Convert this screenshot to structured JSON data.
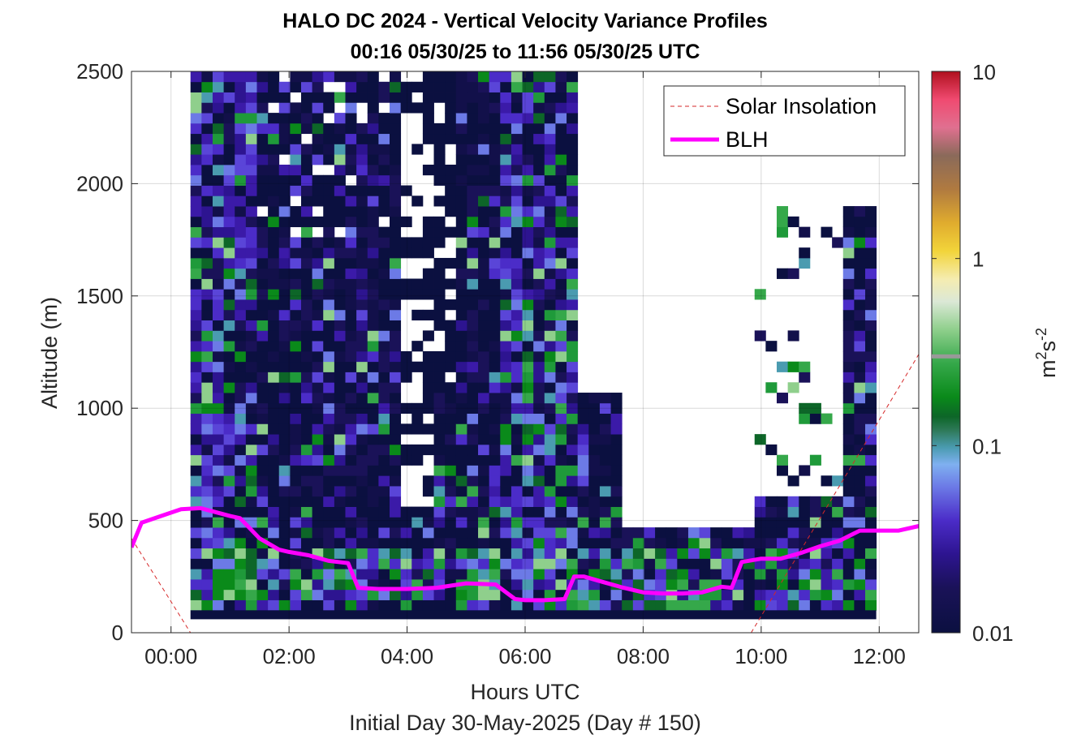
{
  "chart_data": {
    "type": "heatmap",
    "title": "HALO DC 2024 - Vertical Velocity Variance Profiles",
    "subtitle": "00:16 05/30/25 to 11:56 05/30/25  UTC",
    "xlabel": "Hours UTC",
    "xlabel2": "Initial Day 30-May-2025 (Day # 150)",
    "ylabel": "Altitude (m)",
    "x_ticks": [
      "00:00",
      "02:00",
      "04:00",
      "06:00",
      "08:00",
      "10:00",
      "12:00"
    ],
    "x_tick_hours": [
      0,
      2,
      4,
      6,
      8,
      10,
      12
    ],
    "xlim_hours": [
      -0.67,
      12.67
    ],
    "y_ticks": [
      "0",
      "500",
      "1000",
      "1500",
      "2000",
      "2500"
    ],
    "y_tick_values": [
      0,
      500,
      1000,
      1500,
      2000,
      2500
    ],
    "ylim": [
      0,
      2500
    ],
    "grid": true,
    "colorbar": {
      "scale": "log",
      "range": [
        0.01,
        10
      ],
      "tick_labels": [
        "0.01",
        "0.1",
        "1",
        "10"
      ],
      "tick_values": [
        0.01,
        0.1,
        1,
        10
      ],
      "label": "m2s-2",
      "marker_value": 0.3
    },
    "legend": {
      "position": "top-right",
      "entries": [
        "Solar Insolation",
        "BLH"
      ]
    },
    "series": [
      {
        "name": "Solar Insolation",
        "style": "dashed",
        "color": "#d62728",
        "x": [
          -0.67,
          0.33,
          9.83,
          12.67
        ],
        "y": [
          420,
          0,
          0,
          1240
        ]
      },
      {
        "name": "BLH",
        "style": "solid",
        "color": "#ff00ff",
        "x": [
          -0.67,
          -0.5,
          -0.17,
          0.17,
          0.5,
          1.0,
          1.17,
          1.5,
          1.83,
          2.0,
          2.33,
          2.67,
          3.0,
          3.17,
          3.5,
          4.0,
          4.5,
          5.0,
          5.5,
          5.83,
          6.0,
          6.33,
          6.67,
          6.83,
          7.0,
          7.33,
          7.67,
          8.0,
          8.33,
          8.67,
          9.0,
          9.33,
          9.5,
          9.67,
          10.0,
          10.33,
          10.67,
          11.0,
          11.33,
          11.67,
          12.0,
          12.33,
          12.67
        ],
        "y": [
          380,
          490,
          520,
          550,
          555,
          520,
          510,
          420,
          370,
          360,
          345,
          320,
          310,
          200,
          195,
          195,
          200,
          220,
          215,
          150,
          145,
          145,
          150,
          250,
          250,
          225,
          200,
          180,
          175,
          175,
          180,
          205,
          200,
          315,
          330,
          330,
          355,
          385,
          410,
          455,
          455,
          455,
          475
        ]
      }
    ],
    "heatmap_x_range_hours": [
      0.33,
      11.95
    ],
    "heatmap_y_range": [
      100,
      2500
    ],
    "colors": {
      "background": "#ffffff",
      "dark_cell": "#0b1040",
      "blh": "#ff00ff",
      "insolation": "#d62728"
    }
  }
}
